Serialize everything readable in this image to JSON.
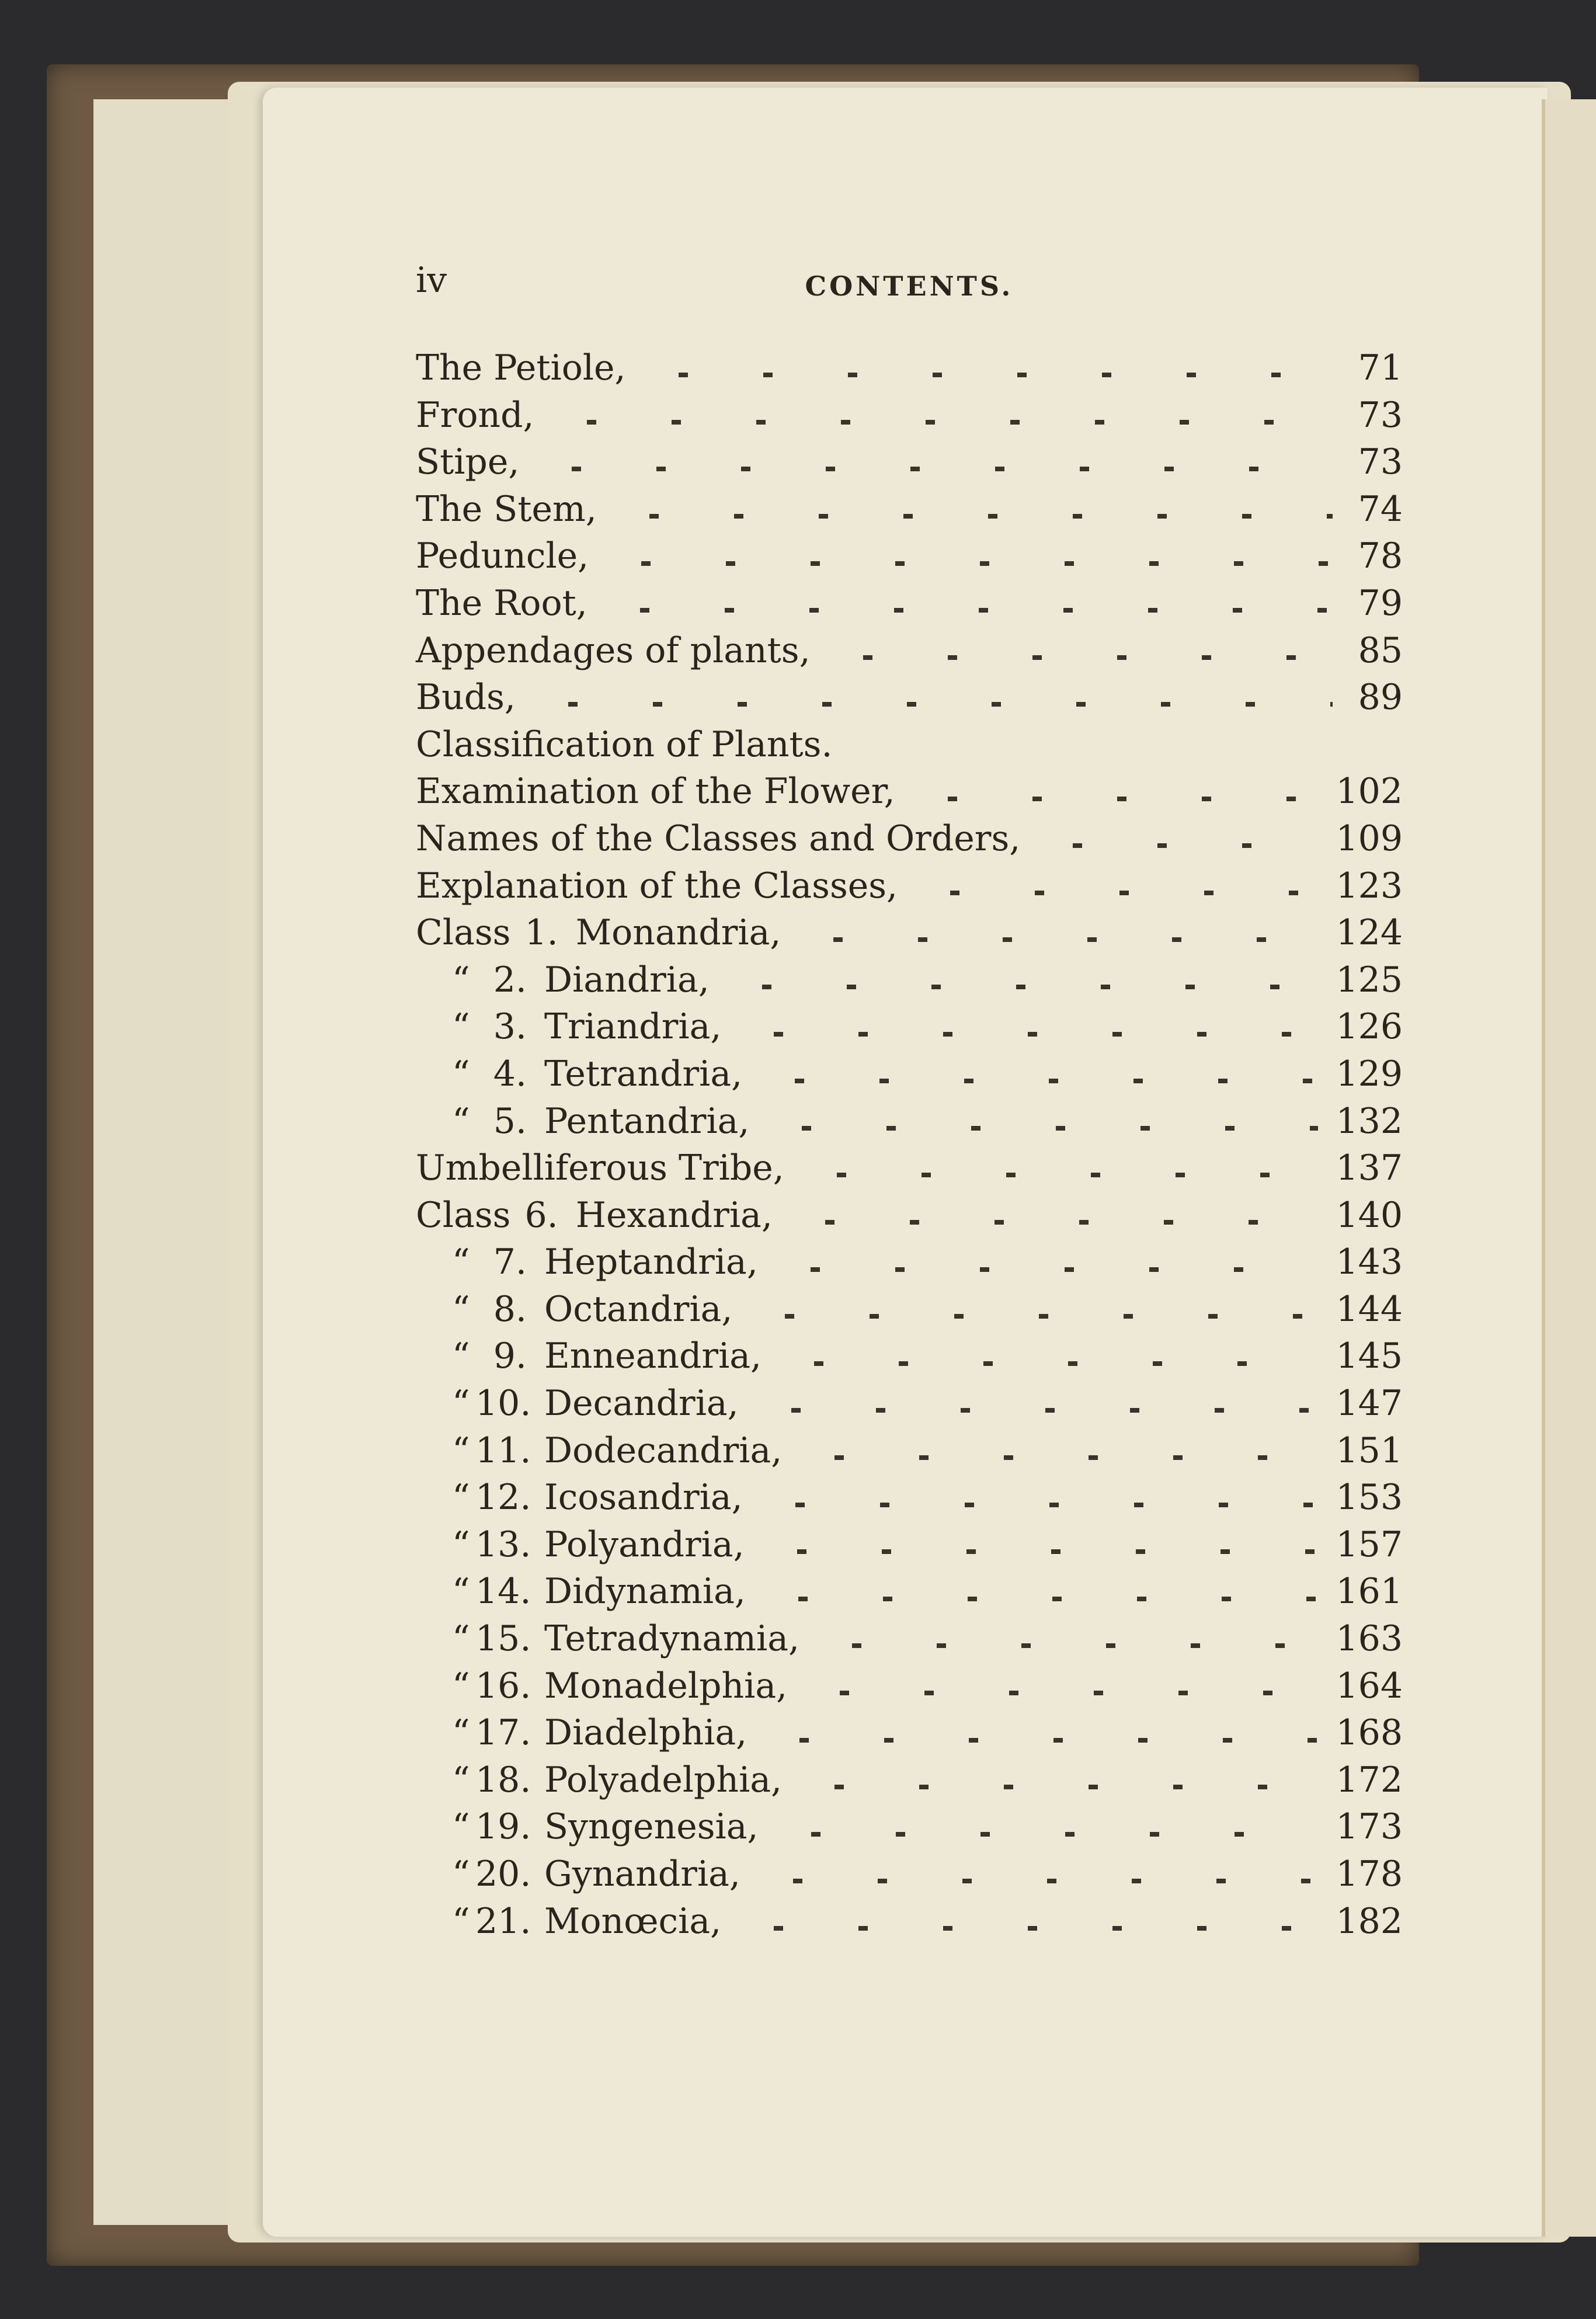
{
  "header": {
    "folio": "iv",
    "running_title": "CONTENTS."
  },
  "entries": [
    {
      "title": "The Petiole,",
      "page": "71"
    },
    {
      "title": "Frond,",
      "page": "73"
    },
    {
      "title": "Stipe,",
      "page": "73"
    },
    {
      "title": "The Stem,",
      "page": "74"
    },
    {
      "title": "Peduncle,",
      "page": "78"
    },
    {
      "title": "The Root,",
      "page": "79"
    },
    {
      "title": "Appendages of plants,",
      "page": "85"
    },
    {
      "title": "Buds,",
      "page": "89"
    },
    {
      "title": "Classification of Plants.",
      "page": ""
    },
    {
      "title": "Examination of the Flower,",
      "page": "102"
    },
    {
      "title": "Names of the Classes and Orders,",
      "page": "109"
    },
    {
      "title": "Explanation of the Classes,",
      "page": "123"
    },
    {
      "prefix": "Class",
      "num": "1.",
      "title": "Monandria,",
      "page": "124"
    },
    {
      "prefix": "“",
      "num": "2.",
      "title": "Diandria,",
      "page": "125"
    },
    {
      "prefix": "“",
      "num": "3.",
      "title": "Triandria,",
      "page": "126"
    },
    {
      "prefix": "“",
      "num": "4.",
      "title": "Tetrandria,",
      "page": "129"
    },
    {
      "prefix": "“",
      "num": "5.",
      "title": "Pentandria,",
      "page": "132"
    },
    {
      "title": "Umbelliferous Tribe,",
      "page": "137"
    },
    {
      "prefix": "Class",
      "num": "6.",
      "title": "Hexandria,",
      "page": "140"
    },
    {
      "prefix": "“",
      "num": "7.",
      "title": "Heptandria,",
      "page": "143"
    },
    {
      "prefix": "“",
      "num": "8.",
      "title": "Octandria,",
      "page": "144"
    },
    {
      "prefix": "“",
      "num": "9.",
      "title": "Enneandria,",
      "page": "145"
    },
    {
      "prefix": "“",
      "num": "10.",
      "title": "Decandria,",
      "page": "147"
    },
    {
      "prefix": "“",
      "num": "11.",
      "title": "Dodecandria,",
      "page": "151"
    },
    {
      "prefix": "“",
      "num": "12.",
      "title": "Icosandria,",
      "page": "153"
    },
    {
      "prefix": "“",
      "num": "13.",
      "title": "Polyandria,",
      "page": "157"
    },
    {
      "prefix": "“",
      "num": "14.",
      "title": "Didynamia,",
      "page": "161"
    },
    {
      "prefix": "“",
      "num": "15.",
      "title": "Tetradynamia,",
      "page": "163"
    },
    {
      "prefix": "“",
      "num": "16.",
      "title": "Monadelphia,",
      "page": "164"
    },
    {
      "prefix": "“",
      "num": "17.",
      "title": "Diadelphia,",
      "page": "168"
    },
    {
      "prefix": "“",
      "num": "18.",
      "title": "Polyadelphia,",
      "page": "172"
    },
    {
      "prefix": "“",
      "num": "19.",
      "title": "Syngenesia,",
      "page": "173"
    },
    {
      "prefix": "“",
      "num": "20.",
      "title": "Gynandria,",
      "page": "178"
    },
    {
      "prefix": "“",
      "num": "21.",
      "title": "Monœcia,",
      "page": "182"
    }
  ]
}
